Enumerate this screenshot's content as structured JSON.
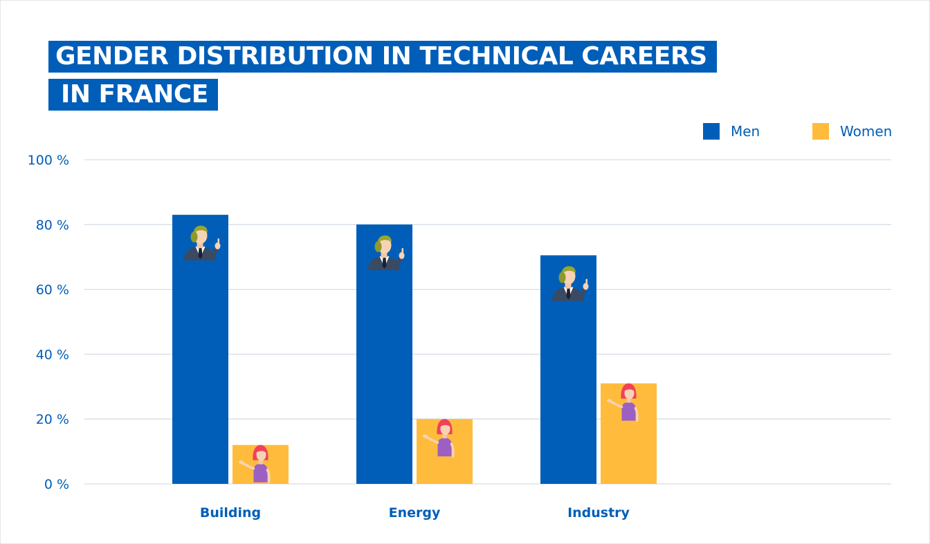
{
  "chart_data": {
    "type": "bar",
    "title_lines": [
      "GENDER DISTRIBUTION IN TECHNICAL CAREERS",
      "IN FRANCE"
    ],
    "categories": [
      "Building",
      "Energy",
      "Industry"
    ],
    "series": [
      {
        "name": "Men",
        "color": "#005eb8",
        "values": [
          83,
          80,
          70.5
        ]
      },
      {
        "name": "Women",
        "color": "#ffbc3c",
        "values": [
          12,
          20,
          31
        ]
      }
    ],
    "ylim": [
      0,
      100
    ],
    "yticks": [
      0,
      20,
      40,
      60,
      80,
      100
    ],
    "ytick_labels": [
      "0 %",
      "20 %",
      "40 %",
      "60 %",
      "80 %",
      "100 %"
    ],
    "xlabel": "",
    "ylabel": "",
    "grid": true,
    "legend_position": "top-right",
    "icons": {
      "men": "man-pointing-icon",
      "women": "woman-presenting-icon"
    }
  },
  "colors": {
    "title_bg": "#005eb8",
    "title_text": "#ffffff",
    "axis_text": "#005eb8",
    "grid": "#d3dde6"
  }
}
